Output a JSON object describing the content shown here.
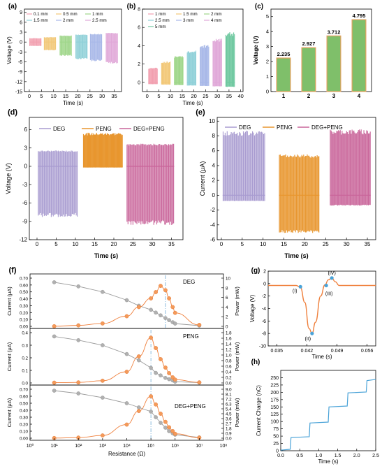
{
  "colors": {
    "deg": "#a89bd0",
    "peng": "#e8962e",
    "degpeng": "#c9659a",
    "gray": "#9a9a9a",
    "orange": "#ef7f3b",
    "bar_fill": "#7fbf6a",
    "bar_edge": "#e8a060",
    "blue": "#4aa3d8",
    "dash": "#7fb3d9"
  },
  "chart_data": [
    {
      "panel": "(a)",
      "type": "line",
      "xlabel": "Time (s)",
      "ylabel": "Voltage (V)",
      "xlim": [
        -2,
        38
      ],
      "xticks": [
        0,
        5,
        10,
        15,
        20,
        25,
        30,
        35
      ],
      "ylim": [
        -15,
        10
      ],
      "yticks": [
        -15,
        -12,
        -9,
        -6,
        -3,
        0,
        3,
        6,
        9
      ],
      "legend": [
        "0.1 mm",
        "0.5 mm",
        "1 mm",
        "1.5 mm",
        "2 mm",
        "2.5 mm"
      ],
      "series": [
        {
          "name": "0.1 mm",
          "x_range": [
            0,
            5
          ],
          "y_range": [
            -1.2,
            1.2
          ],
          "color": "#f2a0b0"
        },
        {
          "name": "0.5 mm",
          "x_range": [
            6,
            11
          ],
          "y_range": [
            -2.5,
            1.5
          ],
          "color": "#f2c878"
        },
        {
          "name": "1 mm",
          "x_range": [
            12.5,
            17.5
          ],
          "y_range": [
            -4.2,
            2.0
          ],
          "color": "#9fd68a"
        },
        {
          "name": "1.5 mm",
          "x_range": [
            19,
            24
          ],
          "y_range": [
            -5.2,
            2.3
          ],
          "color": "#8fd0d8"
        },
        {
          "name": "2 mm",
          "x_range": [
            25,
            30
          ],
          "y_range": [
            -5.8,
            2.5
          ],
          "color": "#a8b8e8"
        },
        {
          "name": "2.5 mm",
          "x_range": [
            31.5,
            36.5
          ],
          "y_range": [
            -6.5,
            2.8
          ],
          "color": "#e0a8d8"
        }
      ]
    },
    {
      "panel": "(b)",
      "type": "line",
      "xlabel": "Time (s)",
      "ylabel": "",
      "xlim": [
        -2,
        41
      ],
      "xticks": [
        0,
        5,
        10,
        15,
        20,
        25,
        30,
        35,
        40
      ],
      "ylim": [
        -1,
        8
      ],
      "yticks": [
        0,
        2,
        4,
        6,
        8
      ],
      "legend": [
        "1 mm",
        "1.5 mm",
        "2 mm",
        "2.5 mm",
        "3 mm",
        "4 mm",
        "5 mm"
      ],
      "series": [
        {
          "name": "1 mm",
          "x_range": [
            0.5,
            4.5
          ],
          "y_range": [
            -0.2,
            1.6
          ],
          "color": "#f2a0b0"
        },
        {
          "name": "1.5 mm",
          "x_range": [
            6,
            10
          ],
          "y_range": [
            -0.25,
            2.3
          ],
          "color": "#f2c878"
        },
        {
          "name": "2 mm",
          "x_range": [
            11.5,
            15.5
          ],
          "y_range": [
            -0.3,
            2.9
          ],
          "color": "#9fd68a"
        },
        {
          "name": "2.5 mm",
          "x_range": [
            17,
            21
          ],
          "y_range": [
            -0.35,
            3.5
          ],
          "color": "#8fd0d8"
        },
        {
          "name": "3 mm",
          "x_range": [
            22.5,
            26.5
          ],
          "y_range": [
            -0.4,
            4.1
          ],
          "color": "#a8b8e8"
        },
        {
          "name": "4 mm",
          "x_range": [
            28,
            32
          ],
          "y_range": [
            -0.45,
            4.8
          ],
          "color": "#e0a8d8"
        },
        {
          "name": "5 mm",
          "x_range": [
            33.5,
            37.5
          ],
          "y_range": [
            -0.5,
            5.5
          ],
          "color": "#6fc8a0"
        }
      ]
    },
    {
      "panel": "(c)",
      "type": "bar",
      "ylabel": "Voltage (V)",
      "categories": [
        "1",
        "2",
        "3",
        "4"
      ],
      "values": [
        2.235,
        2.927,
        3.712,
        4.795
      ],
      "labels": [
        "2.235",
        "2.927",
        "3.712",
        "4.795"
      ],
      "ylim": [
        0,
        5.5
      ],
      "yticks": [
        0,
        1,
        2,
        3,
        4,
        5
      ]
    },
    {
      "panel": "(d)",
      "type": "line",
      "xlabel": "Time (s)",
      "ylabel": "Voltage (V)",
      "xlim": [
        -2,
        38
      ],
      "xticks": [
        0,
        5,
        10,
        15,
        20,
        25,
        30,
        35
      ],
      "ylim": [
        -12,
        8
      ],
      "yticks": [
        -12,
        -9,
        -6,
        -3,
        0,
        3,
        6
      ],
      "legend": [
        "DEG",
        "PENG",
        "DEG+PENG"
      ],
      "series": [
        {
          "name": "DEG",
          "x_range": [
            0.2,
            10.6
          ],
          "y_range": [
            -8.3,
            2.6
          ],
          "pulses": 40
        },
        {
          "name": "PENG",
          "x_range": [
            12.0,
            22.3
          ],
          "y_range": [
            -0.2,
            5.5
          ],
          "pulses": 60
        },
        {
          "name": "DEG+PENG",
          "x_range": [
            23.3,
            35.7
          ],
          "y_range": [
            -9.6,
            3.7
          ],
          "pulses": 48
        }
      ]
    },
    {
      "panel": "(e)",
      "type": "line",
      "xlabel": "Time (s)",
      "ylabel": "Current (μA)",
      "xlim": [
        -1,
        37
      ],
      "xticks": [
        0,
        5,
        10,
        15,
        20,
        25,
        30,
        35
      ],
      "ylim": [
        -6,
        10.5
      ],
      "yticks": [
        -6,
        -4,
        -2,
        0,
        2,
        4,
        6,
        8,
        10
      ],
      "legend": [
        "DEG",
        "PENG",
        "DEG+PENG"
      ],
      "series": [
        {
          "name": "DEG",
          "x_range": [
            0.3,
            10.5
          ],
          "y_range": [
            -0.8,
            8.7
          ],
          "pulses": 42
        },
        {
          "name": "PENG",
          "x_range": [
            13.8,
            23.5
          ],
          "y_range": [
            -5.1,
            5.5
          ],
          "pulses": 45
        },
        {
          "name": "DEG+PENG",
          "x_range": [
            26.0,
            35.8
          ],
          "y_range": [
            -1.4,
            8.9
          ],
          "pulses": 45
        }
      ]
    },
    {
      "panel": "(f)",
      "type": "scatter",
      "xlabel": "Resistance (Ω)",
      "xscale": "log",
      "xlim_exp": [
        0,
        8
      ],
      "x_tick_labels": [
        "10⁰",
        "10¹",
        "10²",
        "10³",
        "10⁴",
        "10⁵",
        "10⁶",
        "10⁷",
        "10⁸"
      ],
      "resistance_exp": [
        1,
        2,
        3,
        4,
        4.5,
        5,
        5.2,
        5.4,
        5.6,
        5.75,
        5.9,
        6,
        7
      ],
      "subplots": [
        {
          "label": "DEG",
          "current_ylabel": "Current (μA)",
          "power_ylabel": "Power (mW)",
          "current_ylim": [
            0,
            0.7
          ],
          "current_ticks": [
            "0.00",
            "0.10",
            "0.20",
            "0.30",
            "0.40",
            "0.50",
            "0.60",
            "0.70"
          ],
          "power_ylim": [
            0,
            10
          ],
          "power_ticks": [
            "0",
            "2",
            "4",
            "6",
            "8",
            "10"
          ],
          "current": [
            0.64,
            0.58,
            0.5,
            0.38,
            0.3,
            0.24,
            0.2,
            0.16,
            0.12,
            0.09,
            0.06,
            0.04,
            0.01
          ],
          "power": [
            0.02,
            0.2,
            0.6,
            2.1,
            4.0,
            5.8,
            7.1,
            8.4,
            7.5,
            5.8,
            4.0,
            2.8,
            0.3
          ],
          "peak_exp": 5.6
        },
        {
          "label": "PENG",
          "current_ylabel": "Current (μA)",
          "power_ylabel": "Power (mW)",
          "current_ylim": [
            0,
            0.4
          ],
          "current_ticks": [
            "0.0",
            "0.1",
            "0.2",
            "0.3",
            "0.4"
          ],
          "power_ylim": [
            0,
            1.8
          ],
          "power_ticks": [
            "0.0",
            "0.2",
            "0.4",
            "0.6",
            "0.8",
            "1.0",
            "1.2",
            "1.4",
            "1.6",
            "1.8"
          ],
          "current": [
            0.37,
            0.34,
            0.3,
            0.23,
            0.18,
            0.12,
            0.08,
            0.06,
            0.04,
            0.03,
            0.02,
            0.01,
            0.003
          ],
          "power": [
            0.01,
            0.02,
            0.08,
            0.4,
            0.95,
            1.62,
            1.25,
            0.85,
            0.55,
            0.35,
            0.2,
            0.12,
            0.02
          ],
          "peak_exp": 5.0
        },
        {
          "label": "DEG+PENG",
          "current_ylabel": "Current (μA)",
          "power_ylabel": "Power (mW)",
          "current_ylim": [
            0,
            0.7
          ],
          "current_ticks": [
            "0.00",
            "0.10",
            "0.20",
            "0.30",
            "0.40",
            "0.50",
            "0.60",
            "0.70"
          ],
          "power_ylim": [
            0,
            9
          ],
          "power_ticks": [
            "0.0",
            "0.9",
            "1.8",
            "2.7",
            "3.6",
            "4.5",
            "5.4",
            "6.3",
            "7.2",
            "8.1",
            "9.0"
          ],
          "current": [
            0.68,
            0.64,
            0.58,
            0.5,
            0.44,
            0.38,
            0.3,
            0.22,
            0.15,
            0.1,
            0.07,
            0.05,
            0.01
          ],
          "power": [
            0.02,
            0.1,
            0.5,
            2.5,
            5.0,
            7.7,
            6.2,
            4.5,
            3.0,
            2.0,
            1.3,
            0.8,
            0.1
          ],
          "peak_exp": 5.0
        }
      ]
    },
    {
      "panel": "(g)",
      "type": "line",
      "xlabel": "Time (s)",
      "ylabel": "Voltage (V)",
      "xlim": [
        0.033,
        0.058
      ],
      "xticks": [
        0.035,
        0.042,
        0.049,
        0.056
      ],
      "x_tick_labels": [
        "0.035",
        "0.042",
        "0.049",
        "0.056"
      ],
      "ylim": [
        -10,
        2
      ],
      "yticks": [
        -10,
        -8,
        -6,
        -4,
        -2,
        0,
        2
      ],
      "curve": [
        [
          0.033,
          -0.3
        ],
        [
          0.0395,
          -0.3
        ],
        [
          0.0405,
          -0.6
        ],
        [
          0.0415,
          -3.0
        ],
        [
          0.0425,
          -7.2
        ],
        [
          0.0432,
          -8.0
        ],
        [
          0.044,
          -6.2
        ],
        [
          0.0452,
          -2.0
        ],
        [
          0.0462,
          -0.2
        ],
        [
          0.047,
          0.6
        ],
        [
          0.0478,
          0.9
        ],
        [
          0.0486,
          0.3
        ],
        [
          0.0495,
          -0.3
        ],
        [
          0.058,
          -0.3
        ]
      ],
      "points": [
        {
          "label": "(I)",
          "x": 0.0405,
          "y": -0.5
        },
        {
          "label": "(II)",
          "x": 0.0432,
          "y": -8.0
        },
        {
          "label": "(III)",
          "x": 0.0465,
          "y": -0.3
        },
        {
          "label": "(IV)",
          "x": 0.0478,
          "y": 0.9
        }
      ]
    },
    {
      "panel": "(h)",
      "type": "line",
      "xlabel": "Time (s)",
      "ylabel": "Current Charge (nC)",
      "xlim": [
        0,
        2.5
      ],
      "xticks": [
        0,
        0.5,
        1.0,
        1.5,
        2.0,
        2.5
      ],
      "x_tick_labels": [
        "0.0",
        "0.5",
        "1.0",
        "1.5",
        "2.0",
        "2.5"
      ],
      "ylim": [
        0,
        275
      ],
      "yticks": [
        0,
        25,
        50,
        75,
        100,
        125,
        150,
        175,
        200,
        225,
        250
      ],
      "steps_x": [
        0.25,
        0.75,
        1.25,
        1.75,
        2.25
      ],
      "levels": [
        2,
        45,
        95,
        150,
        198,
        240
      ]
    }
  ]
}
